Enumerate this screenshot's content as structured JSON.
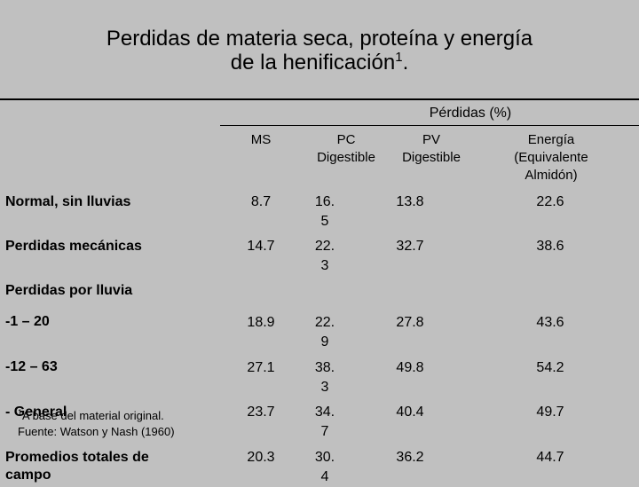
{
  "title": {
    "line1": "Perdidas de materia seca, proteína y energía",
    "line2": "de la henificación",
    "sup": "1",
    "end": "."
  },
  "table": {
    "group_header": "Pérdidas (%)",
    "columns": {
      "ms": "MS",
      "pc": [
        "PC",
        "Digestible"
      ],
      "pv": [
        "PV",
        "Digestible"
      ],
      "energia": [
        "Energía",
        "(Equivalente",
        "Almidón)"
      ]
    },
    "rows": [
      {
        "label": "Normal, sin lluvias",
        "ms": "8.7",
        "pc": [
          "16.",
          "5"
        ],
        "pv": "13.8",
        "energia": "22.6"
      },
      {
        "label": "Perdidas mecánicas",
        "ms": "14.7",
        "pc": [
          "22.",
          "3"
        ],
        "pv": "32.7",
        "energia": "38.6"
      },
      {
        "label": "Perdidas por lluvia"
      },
      {
        "label": "-1 – 20",
        "ms": "18.9",
        "pc": [
          "22.",
          "9"
        ],
        "pv": "27.8",
        "energia": "43.6"
      },
      {
        "label": "-12 – 63",
        "ms": "27.1",
        "pc": [
          "38.",
          "3"
        ],
        "pv": "49.8",
        "energia": "54.2"
      },
      {
        "label": "- General",
        "ms": "23.7",
        "pc": [
          "34.",
          "7"
        ],
        "pv": "40.4",
        "energia": "49.7"
      },
      {
        "label": "Promedios totales de",
        "label2": "campo",
        "ms": "20.3",
        "pc": [
          "30.",
          "4"
        ],
        "pv": "36.2",
        "energia": "44.7"
      }
    ]
  },
  "footnote": {
    "sup": "1",
    "line1": "A base del material original.",
    "line2": "Fuente: Watson y Nash (1960)"
  }
}
